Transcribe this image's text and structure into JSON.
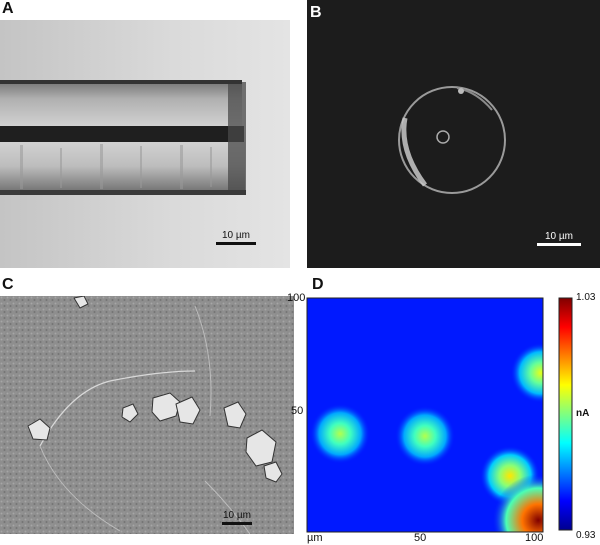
{
  "panels": {
    "a": {
      "label": "A",
      "scalebar": "10 µm"
    },
    "b": {
      "label": "B",
      "scalebar": "10 µm"
    },
    "c": {
      "label": "C",
      "scalebar": "10 µm"
    },
    "d": {
      "label": "D"
    }
  },
  "chart_data": {
    "type": "heatmap",
    "x_ticks": [
      "50",
      "100"
    ],
    "y_ticks": [
      "100",
      "50"
    ],
    "x_unit": "µm",
    "xlim": [
      0,
      100
    ],
    "ylim": [
      0,
      100
    ],
    "colorbar": {
      "min": "0.93",
      "max": "1.03",
      "unit": "nA"
    },
    "colormap": "jet",
    "background_value": 0.945,
    "hotspots": [
      {
        "x": 14,
        "y": 42,
        "value": 0.985
      },
      {
        "x": 50,
        "y": 41,
        "value": 0.985
      },
      {
        "x": 86,
        "y": 24,
        "value": 0.995
      },
      {
        "x": 99,
        "y": 68,
        "value": 0.99
      },
      {
        "x": 98,
        "y": 5,
        "value": 1.03
      }
    ]
  }
}
